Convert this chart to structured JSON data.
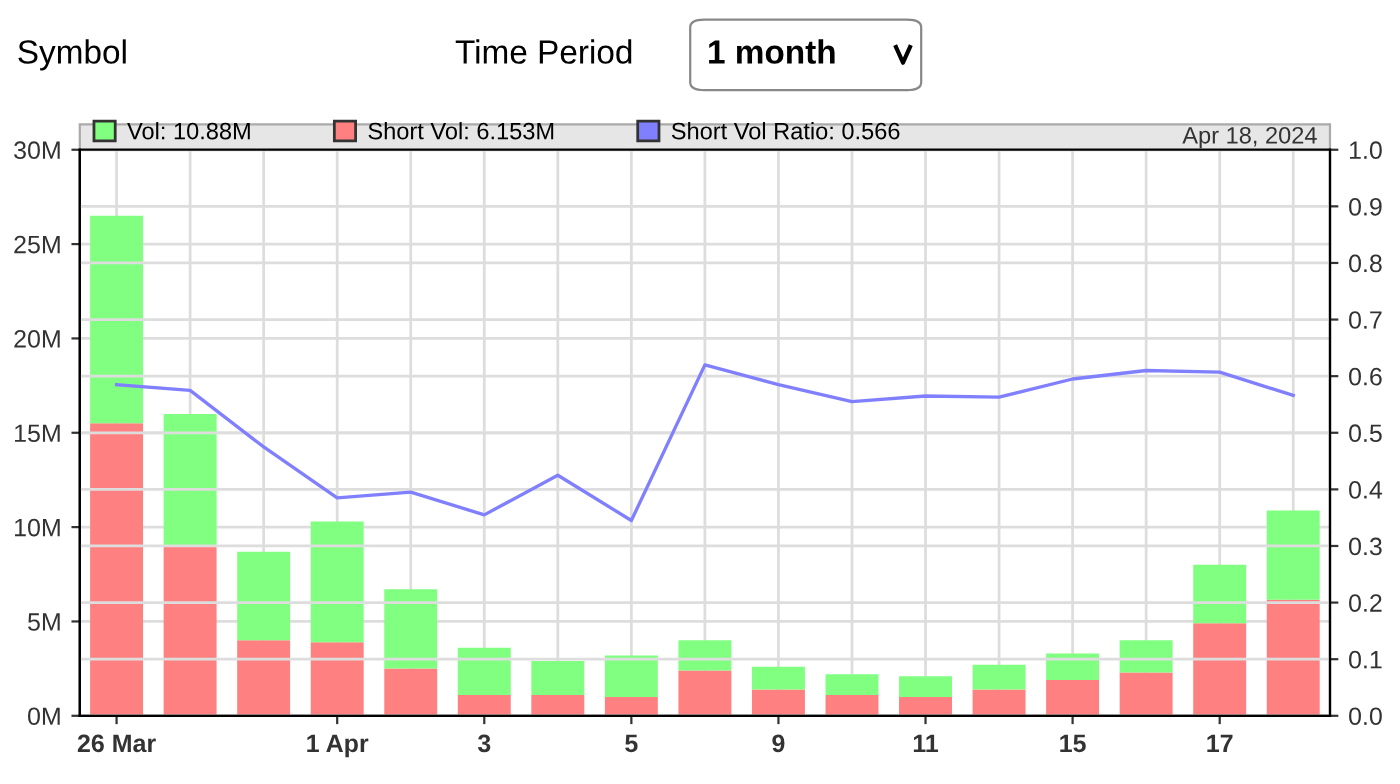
{
  "chart_data": {
    "type": "bar",
    "stacked": true,
    "categories": [
      "26 Mar",
      null,
      null,
      "1 Apr",
      null,
      "3",
      null,
      "5",
      null,
      "9",
      null,
      "11",
      null,
      "15",
      null,
      "17",
      null
    ],
    "series": [
      {
        "name": "Short Vol: 6.153M",
        "color": "#ff8080",
        "values": [
          15.5,
          9.0,
          4.0,
          3.9,
          2.5,
          1.1,
          1.1,
          1.0,
          2.4,
          1.4,
          1.1,
          1.0,
          1.4,
          1.9,
          2.3,
          4.9,
          6.153
        ]
      },
      {
        "name": "Vol: 10.88M",
        "color": "#80ff80",
        "values": [
          11.0,
          7.0,
          4.7,
          6.4,
          4.2,
          2.5,
          1.8,
          2.2,
          1.6,
          1.2,
          1.1,
          1.1,
          1.3,
          1.4,
          1.7,
          3.1,
          4.727
        ]
      },
      {
        "name": "Short Vol Ratio: 0.566",
        "color": "#8080ff",
        "type": "line",
        "axis": "y2",
        "values": [
          0.585,
          0.575,
          0.475,
          0.385,
          0.395,
          0.355,
          0.425,
          0.345,
          0.62,
          0.585,
          0.555,
          0.565,
          0.563,
          0.595,
          0.61,
          0.607,
          0.566
        ]
      }
    ],
    "ylim": [
      0,
      30
    ],
    "yticks": [
      {
        "value": 0,
        "label": "0M"
      },
      {
        "value": 5,
        "label": "5M"
      },
      {
        "value": 10,
        "label": "10M"
      },
      {
        "value": 15,
        "label": "15M"
      },
      {
        "value": 20,
        "label": "20M"
      },
      {
        "value": 25,
        "label": "25M"
      },
      {
        "value": 30,
        "label": "30M"
      }
    ],
    "y2lim": [
      0,
      1.0
    ],
    "y2ticks": [
      {
        "value": 0,
        "label": "0.0"
      },
      0.1,
      0.2,
      0.3,
      0.4,
      0.5,
      0.6,
      0.7,
      0.8,
      0.9,
      {
        "value": 1.0,
        "label": "1.0"
      }
    ],
    "grid": true,
    "legend": "top",
    "marker": "none",
    "line_style": "solid",
    "annotations": [
      "Apr 18, 2024",
      "Symbol",
      "Time Period",
      "1 month"
    ]
  }
}
